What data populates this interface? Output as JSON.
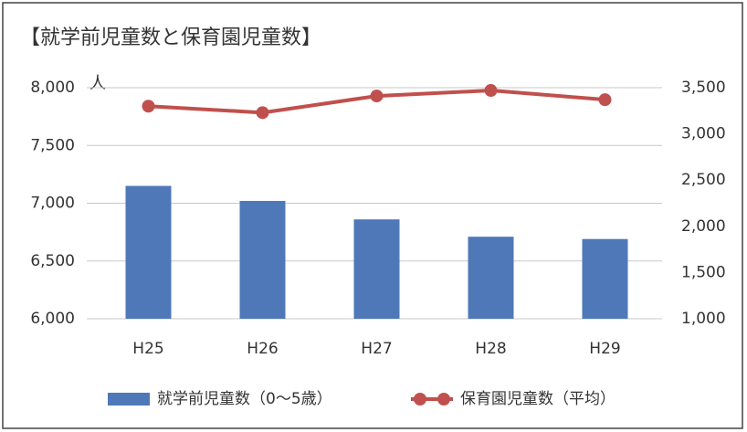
{
  "chart_data": {
    "type": "bar_line",
    "title": "【就学前児童数と保育園児童数】",
    "ylabel": "人",
    "categories": [
      "H25",
      "H26",
      "H27",
      "H28",
      "H29"
    ],
    "series": [
      {
        "name": "就学前児童数（0～5歳）",
        "type": "bar",
        "color": "#4f78b8",
        "values": [
          7150,
          7020,
          6860,
          6710,
          6690
        ]
      },
      {
        "name": "保育園児童数（平均）",
        "type": "line",
        "axis": "y2",
        "color": "#c0504d",
        "values": [
          3300,
          3230,
          3410,
          3470,
          3370
        ]
      }
    ],
    "ylim": [
      6000,
      8000
    ],
    "yticks": [
      {
        "value": 6000,
        "label": "6,000"
      },
      {
        "value": 6500,
        "label": "6,500"
      },
      {
        "value": 7000,
        "label": "7,000"
      },
      {
        "value": 7500,
        "label": "7,500"
      },
      {
        "value": 8000,
        "label": "8,000"
      }
    ],
    "y2lim": [
      1000,
      3500
    ],
    "y2ticks": [
      {
        "value": 1000,
        "label": "1,000"
      },
      {
        "value": 1500,
        "label": "1,500"
      },
      {
        "value": 2000,
        "label": "2,000"
      },
      {
        "value": 2500,
        "label": "2,500"
      },
      {
        "value": 3000,
        "label": "3,000"
      },
      {
        "value": 3500,
        "label": "3,500"
      }
    ],
    "grid": true,
    "legend": "bottom"
  }
}
